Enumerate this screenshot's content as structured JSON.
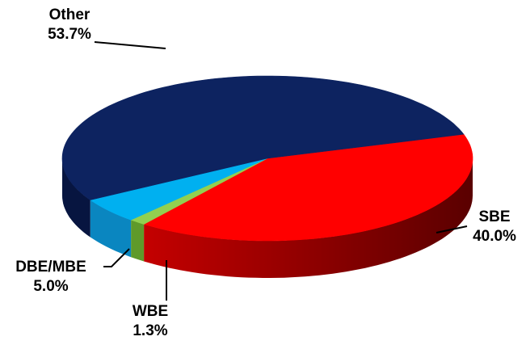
{
  "chart_data": {
    "type": "pie",
    "style": "3d-exploded-perspective",
    "slices": [
      {
        "label": "SBE",
        "percent_text": "40.0%",
        "value": 40.0,
        "color": "#ff0000",
        "side_color": "#8a0000"
      },
      {
        "label": "WBE",
        "percent_text": "1.3%",
        "value": 1.3,
        "color": "#92d050",
        "side_color": "#5f9a2a"
      },
      {
        "label": "DBE/MBE",
        "percent_text": "5.0%",
        "value": 5.0,
        "color": "#00b0f0",
        "side_color": "#0a86c0"
      },
      {
        "label": "Other",
        "percent_text": "53.7%",
        "value": 53.7,
        "color": "#0d2360",
        "side_color": "#071540"
      }
    ],
    "legend": "none",
    "data_labels": "outside-with-leader-lines"
  }
}
